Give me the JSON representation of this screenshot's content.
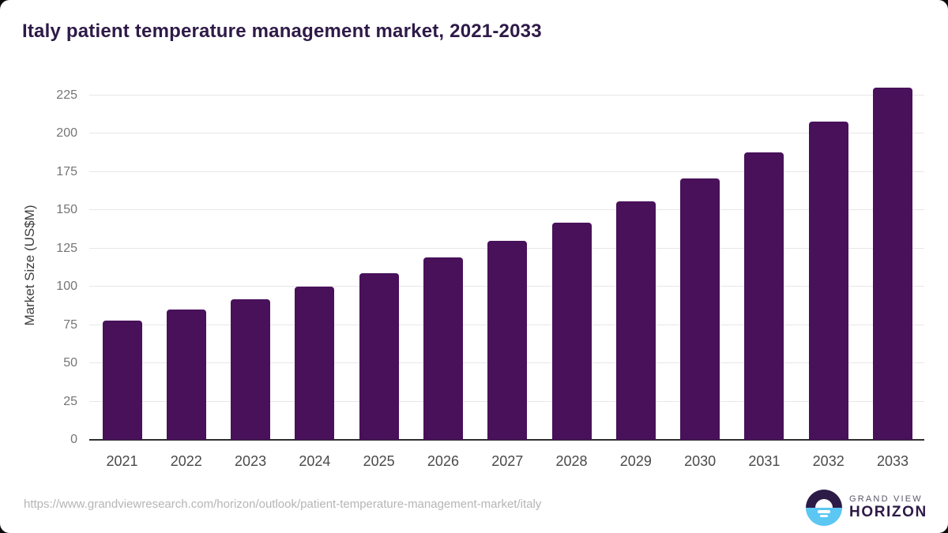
{
  "chart_data": {
    "type": "bar",
    "title": "Italy patient temperature management market, 2021-2033",
    "categories": [
      "2021",
      "2022",
      "2023",
      "2024",
      "2025",
      "2026",
      "2027",
      "2028",
      "2029",
      "2030",
      "2031",
      "2032",
      "2033"
    ],
    "values": [
      78,
      85,
      92,
      100,
      109,
      119,
      130,
      142,
      156,
      171,
      188,
      208,
      230
    ],
    "xlabel": "",
    "ylabel": "Market Size (US$M)",
    "ylim": [
      0,
      225
    ],
    "yticks": [
      0,
      25,
      50,
      75,
      100,
      125,
      150,
      175,
      200,
      225
    ],
    "grid": true,
    "legend_position": "none",
    "bar_color": "#48115a"
  },
  "footer": {
    "source_url": "https://www.grandviewresearch.com/horizon/outlook/patient-temperature-management-market/italy",
    "logo": {
      "line1": "GRAND VIEW",
      "line2": "HORIZON"
    }
  },
  "colors": {
    "title": "#2e1a47",
    "bar": "#48115a",
    "grid": "#e7e7e7",
    "axis_line": "#2f2f2f",
    "y_tick_label": "#757575",
    "x_tick_label": "#4a4a4a",
    "y_axis_title": "#3d3d3d",
    "footer_url": "#b5b5b5",
    "logo_dark": "#2d1b47",
    "logo_blue": "#5cc7f2"
  }
}
